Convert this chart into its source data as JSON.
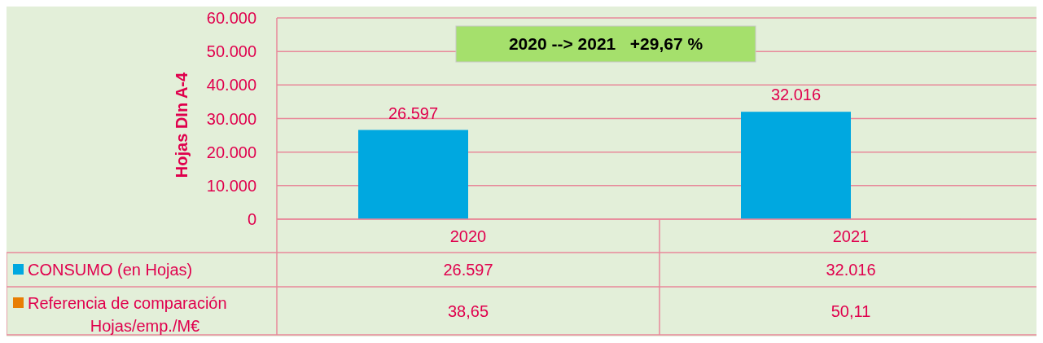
{
  "chart_data": {
    "type": "bar",
    "ylabel": "Hojas DIn A-4",
    "categories": [
      "2020",
      "2021"
    ],
    "series": [
      {
        "name": "CONSUMO (en Hojas)",
        "color": "#00a8e0",
        "values": [
          26597,
          32016
        ],
        "value_labels": [
          "26.597",
          "32.016"
        ]
      },
      {
        "name": "Referencia de comparación Hojas/emp./M€",
        "color": "#e87e04",
        "values": [
          38.65,
          50.11
        ],
        "value_labels": [
          "38,65",
          "50,11"
        ]
      }
    ],
    "ylim": [
      0,
      60000
    ],
    "yticks": [
      {
        "value": 0,
        "label": "0"
      },
      {
        "value": 10000,
        "label": "10.000"
      },
      {
        "value": 20000,
        "label": "20.000"
      },
      {
        "value": 30000,
        "label": "30.000"
      },
      {
        "value": 40000,
        "label": "40.000"
      },
      {
        "value": 50000,
        "label": "50.000"
      },
      {
        "value": 60000,
        "label": "60.000"
      }
    ],
    "grid": "y",
    "legend": "bottom",
    "annotations": [
      "2020 --> 2021   +29,67 %"
    ]
  }
}
